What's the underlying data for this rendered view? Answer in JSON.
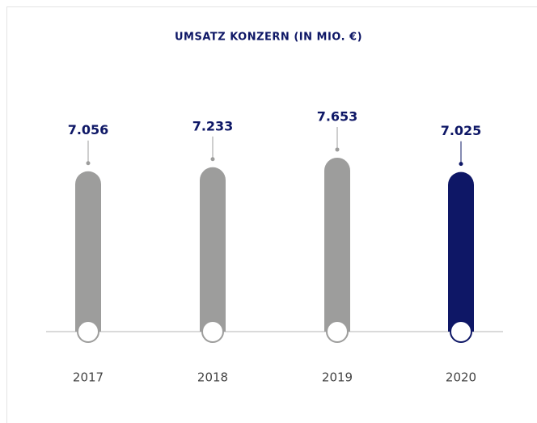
{
  "chart_data": {
    "type": "bar",
    "title": "UMSATZ KONZERN (IN MIO. €)",
    "categories": [
      "2017",
      "2018",
      "2019",
      "2020"
    ],
    "values": [
      7056,
      7233,
      7653,
      7025
    ],
    "value_labels": [
      "7.056",
      "7.233",
      "7.653",
      "7.025"
    ],
    "colors": [
      "#9d9d9c",
      "#9d9d9c",
      "#9d9d9c",
      "#0e1766"
    ],
    "ylim": [
      0,
      10000
    ]
  }
}
